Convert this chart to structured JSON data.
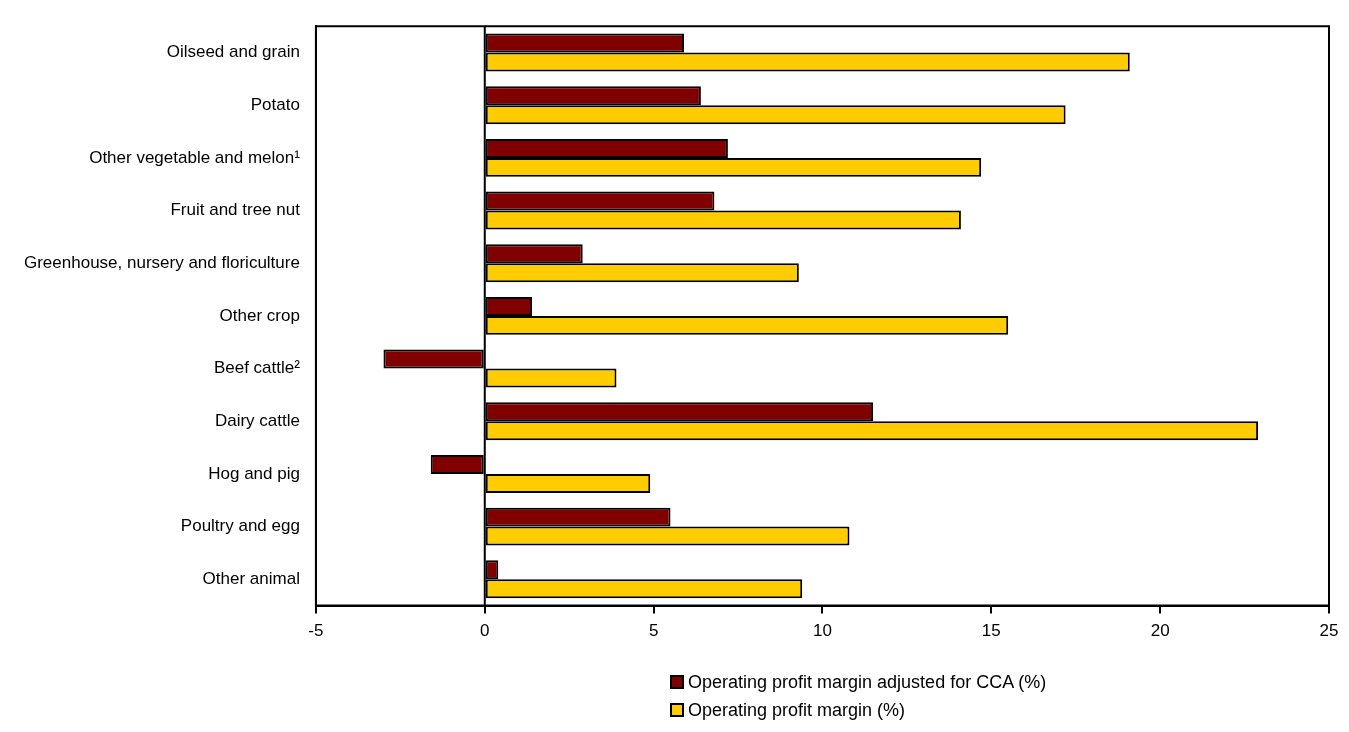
{
  "chart_data": {
    "type": "bar",
    "orientation": "horizontal",
    "categories": [
      "Oilseed and grain",
      "Potato",
      "Other vegetable and melon¹",
      "Fruit and tree nut",
      "Greenhouse, nursery and floriculture",
      "Other crop",
      "Beef cattle²",
      "Dairy cattle",
      "Hog and pig",
      "Poultry and egg",
      "Other animal"
    ],
    "series": [
      {
        "name": "Operating profit margin adjusted for CCA (%)",
        "color": "#800000",
        "values": [
          5.9,
          6.4,
          7.2,
          6.8,
          2.9,
          1.4,
          -3.0,
          11.5,
          -1.6,
          5.5,
          0.4
        ]
      },
      {
        "name": "Operating profit margin (%)",
        "color": "#ffcc00",
        "values": [
          19.1,
          17.2,
          14.7,
          14.1,
          9.3,
          15.5,
          3.9,
          22.9,
          4.9,
          10.8,
          9.4
        ]
      }
    ],
    "xlim": [
      -5,
      25
    ],
    "xticks": [
      -5,
      0,
      5,
      10,
      15,
      20,
      25
    ],
    "ref_lines": [
      {
        "axis": "x",
        "value": 0,
        "color": "#000000"
      }
    ],
    "grid": false,
    "legend": "bottom"
  }
}
